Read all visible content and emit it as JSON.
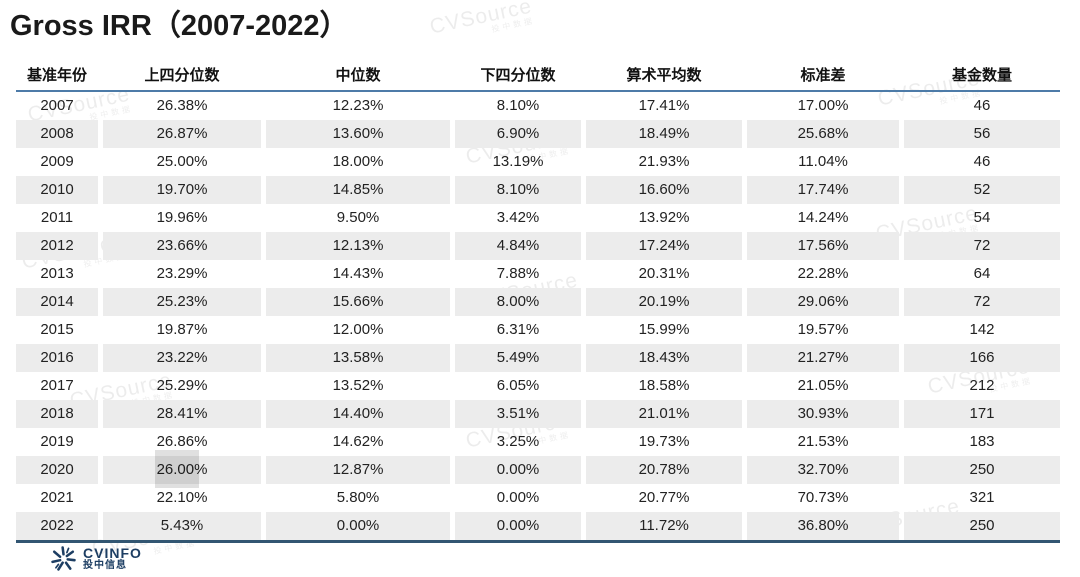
{
  "title": "Gross IRR（2007-2022）",
  "watermark": {
    "text": "CVSource",
    "subtext": "投中数据"
  },
  "footer_logo": {
    "name": "CVINFO",
    "subname": "投中信息"
  },
  "colors": {
    "header_line": "#4d7ba8",
    "bottom_line": "#325672",
    "stripe": "#ececec",
    "logo_navy": "#1d3e63",
    "text": "#222222"
  },
  "chart_data": {
    "type": "table",
    "title": "Gross IRR（2007-2022）",
    "columns": [
      "基准年份",
      "上四分位数",
      "中位数",
      "下四分位数",
      "算术平均数",
      "标准差",
      "基金数量"
    ],
    "rows": [
      [
        "2007",
        "26.38%",
        "12.23%",
        "8.10%",
        "17.41%",
        "17.00%",
        "46"
      ],
      [
        "2008",
        "26.87%",
        "13.60%",
        "6.90%",
        "18.49%",
        "25.68%",
        "56"
      ],
      [
        "2009",
        "25.00%",
        "18.00%",
        "13.19%",
        "21.93%",
        "11.04%",
        "46"
      ],
      [
        "2010",
        "19.70%",
        "14.85%",
        "8.10%",
        "16.60%",
        "17.74%",
        "52"
      ],
      [
        "2011",
        "19.96%",
        "9.50%",
        "3.42%",
        "13.92%",
        "14.24%",
        "54"
      ],
      [
        "2012",
        "23.66%",
        "12.13%",
        "4.84%",
        "17.24%",
        "17.56%",
        "72"
      ],
      [
        "2013",
        "23.29%",
        "14.43%",
        "7.88%",
        "20.31%",
        "22.28%",
        "64"
      ],
      [
        "2014",
        "25.23%",
        "15.66%",
        "8.00%",
        "20.19%",
        "29.06%",
        "72"
      ],
      [
        "2015",
        "19.87%",
        "12.00%",
        "6.31%",
        "15.99%",
        "19.57%",
        "142"
      ],
      [
        "2016",
        "23.22%",
        "13.58%",
        "5.49%",
        "18.43%",
        "21.27%",
        "166"
      ],
      [
        "2017",
        "25.29%",
        "13.52%",
        "6.05%",
        "18.58%",
        "21.05%",
        "212"
      ],
      [
        "2018",
        "28.41%",
        "14.40%",
        "3.51%",
        "21.01%",
        "30.93%",
        "171"
      ],
      [
        "2019",
        "26.86%",
        "14.62%",
        "3.25%",
        "19.73%",
        "21.53%",
        "183"
      ],
      [
        "2020",
        "26.00%",
        "12.87%",
        "0.00%",
        "20.78%",
        "32.70%",
        "250"
      ],
      [
        "2021",
        "22.10%",
        "5.80%",
        "0.00%",
        "20.77%",
        "70.73%",
        "321"
      ],
      [
        "2022",
        "5.43%",
        "0.00%",
        "0.00%",
        "11.72%",
        "36.80%",
        "250"
      ]
    ],
    "highlighted_cell": {
      "row": "2020",
      "column": "上四分位数",
      "value": "26.00%"
    },
    "layout_hints": {
      "striped_rows": "even years shaded",
      "grid": "off"
    }
  }
}
